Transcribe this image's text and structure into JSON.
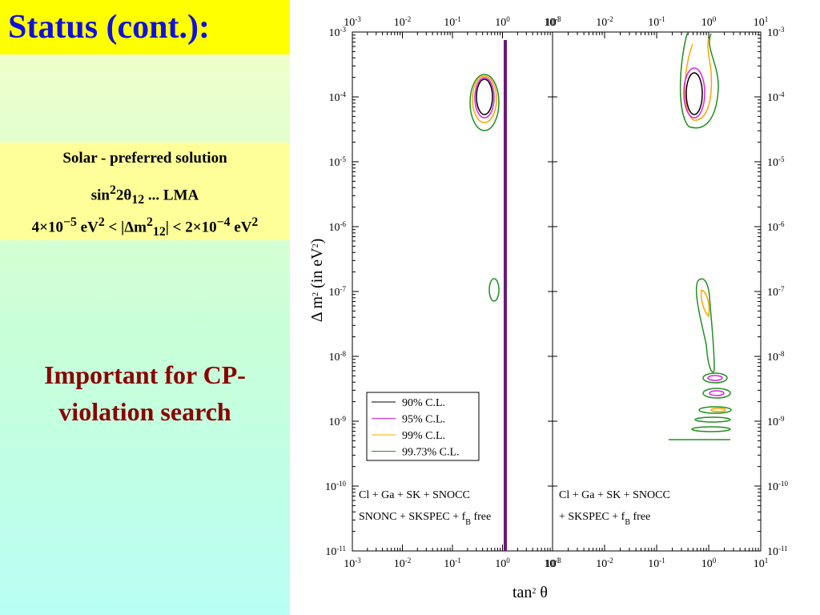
{
  "slide": {
    "title": "Status (cont.):",
    "box": [
      [
        {
          "t": "Solar  -  preferred  solution"
        }
      ],
      [
        {
          "t": "sin"
        },
        {
          "t": "2",
          "s": "sup"
        },
        {
          "t": "2θ"
        },
        {
          "t": "12",
          "s": "sub"
        },
        {
          "t": " ... LMA"
        }
      ],
      [
        {
          "t": "4×10"
        },
        {
          "t": "−5",
          "s": "sup"
        },
        {
          "t": " eV"
        },
        {
          "t": "2",
          "s": "sup"
        },
        {
          "t": " < |Δm"
        },
        {
          "t": "2",
          "s": "sup"
        },
        {
          "t": "12",
          "s": "sub"
        },
        {
          "t": "| < 2×10"
        },
        {
          "t": "−4",
          "s": "sup"
        },
        {
          "t": " eV"
        },
        {
          "t": "2",
          "s": "sup"
        }
      ]
    ],
    "note": [
      "Important for CP-",
      "violation search"
    ]
  },
  "plot": {
    "x_label": [
      {
        "t": "tan"
      },
      {
        "t": "2",
        "s": "sup"
      },
      {
        "t": " θ"
      }
    ],
    "y_label": [
      {
        "t": "Δ m"
      },
      {
        "t": "2",
        "s": "sup"
      },
      {
        "t": " (in eV"
      },
      {
        "t": "2",
        "s": "sup"
      },
      {
        "t": ")"
      }
    ],
    "x_ticks": [
      {
        "b": "10",
        "e": "-3"
      },
      {
        "b": "10",
        "e": "-2"
      },
      {
        "b": "10",
        "e": "-1"
      },
      {
        "b": "10",
        "e": "0"
      },
      {
        "b": "10",
        "e": "1"
      }
    ],
    "y_ticks": [
      {
        "b": "10",
        "e": "-3"
      },
      {
        "b": "10",
        "e": "-4"
      },
      {
        "b": "10",
        "e": "-5"
      },
      {
        "b": "10",
        "e": "-6"
      },
      {
        "b": "10",
        "e": "-7"
      },
      {
        "b": "10",
        "e": "-8"
      },
      {
        "b": "10",
        "e": "-9"
      },
      {
        "b": "10",
        "e": "-10"
      },
      {
        "b": "10",
        "e": "-11"
      }
    ],
    "legend": [
      {
        "name": "90% C.L.",
        "color": "#000000"
      },
      {
        "name": "95% C.L.",
        "color": "#e020e0"
      },
      {
        "name": "99% C.L.",
        "color": "#ffa500"
      },
      {
        "name": "99.73% C.L.",
        "color": "#209020"
      }
    ],
    "panels": [
      {
        "lines": [
          [
            {
              "t": "Cl + Ga + SK + SNOCC"
            }
          ],
          [
            {
              "t": "SNONC + SKSPEC  + f"
            },
            {
              "t": "B",
              "s": "sub"
            },
            {
              "t": " free"
            }
          ]
        ]
      },
      {
        "lines": [
          [
            {
              "t": "Cl + Ga + SK + SNOCC"
            }
          ],
          [
            {
              "t": "+ SKSPEC  + f"
            },
            {
              "t": "B",
              "s": "sub"
            },
            {
              "t": " free"
            }
          ]
        ]
      }
    ]
  }
}
